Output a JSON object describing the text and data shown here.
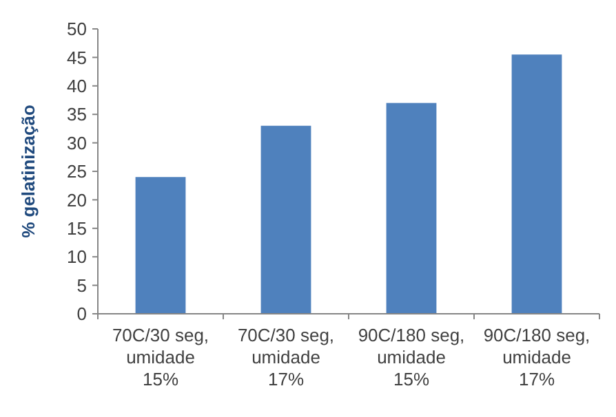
{
  "chart_data": {
    "type": "bar",
    "ylabel": "% gelatinização",
    "categories": [
      "70C/30 seg, umidade 15%",
      "70C/30 seg, umidade 17%",
      "90C/180 seg, umidade 15%",
      "90C/180 seg, umidade 17%"
    ],
    "values": [
      24,
      33,
      37,
      45.5
    ],
    "color": "#4f81bd",
    "ylim": [
      0,
      50
    ],
    "yticks": [
      0,
      5,
      10,
      15,
      20,
      25,
      30,
      35,
      40,
      45,
      50
    ],
    "grid": false
  }
}
